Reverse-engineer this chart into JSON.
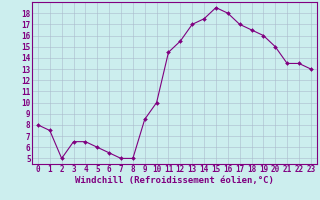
{
  "x": [
    0,
    1,
    2,
    3,
    4,
    5,
    6,
    7,
    8,
    9,
    10,
    11,
    12,
    13,
    14,
    15,
    16,
    17,
    18,
    19,
    20,
    21,
    22,
    23
  ],
  "y": [
    8.0,
    7.5,
    5.0,
    6.5,
    6.5,
    6.0,
    5.5,
    5.0,
    5.0,
    8.5,
    10.0,
    14.5,
    15.5,
    17.0,
    17.5,
    18.5,
    18.0,
    17.0,
    16.5,
    16.0,
    15.0,
    13.5,
    13.5,
    13.0
  ],
  "line_color": "#800080",
  "marker": "D",
  "marker_size": 2.0,
  "bg_color": "#cceeee",
  "grid_color": "#aabbcc",
  "xlabel": "Windchill (Refroidissement éolien,°C)",
  "xlim": [
    -0.5,
    23.5
  ],
  "ylim": [
    4.5,
    19.0
  ],
  "yticks": [
    5,
    6,
    7,
    8,
    9,
    10,
    11,
    12,
    13,
    14,
    15,
    16,
    17,
    18
  ],
  "xticks": [
    0,
    1,
    2,
    3,
    4,
    5,
    6,
    7,
    8,
    9,
    10,
    11,
    12,
    13,
    14,
    15,
    16,
    17,
    18,
    19,
    20,
    21,
    22,
    23
  ],
  "tick_label_fontsize": 5.5,
  "xlabel_fontsize": 6.5,
  "purple": "#800080"
}
